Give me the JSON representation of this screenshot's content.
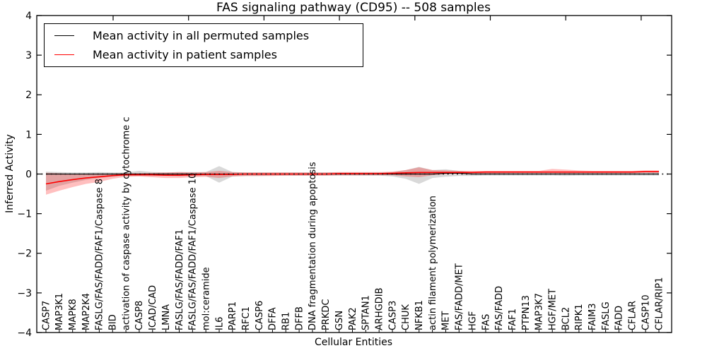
{
  "title": "FAS signaling pathway (CD95) -- 508 samples",
  "axes": {
    "ylabel": "Inferred Activity",
    "xlabel": "Cellular Entities",
    "ytick_labels": [
      "4",
      "3",
      "2",
      "1",
      "0",
      "−1",
      "−2",
      "−3",
      "−4"
    ],
    "ytick_values": [
      4,
      3,
      2,
      1,
      0,
      -1,
      -2,
      -3,
      -4
    ],
    "ylim": [
      -4,
      4
    ]
  },
  "legend": {
    "items": [
      {
        "label": "Mean activity in all permuted samples",
        "color": "#000000"
      },
      {
        "label": "Mean activity in patient samples",
        "color": "#ff0000"
      }
    ]
  },
  "colors": {
    "permuted_line": "#000000",
    "patient_line": "#ff0000",
    "permuted_band": "rgba(0,0,0,0.15)",
    "patient_band": "rgba(255,0,0,0.25)",
    "zero_line": "#000000",
    "frame": "#000000"
  },
  "chart_data": {
    "type": "line",
    "title": "FAS signaling pathway (CD95) -- 508 samples",
    "xlabel": "Cellular Entities",
    "ylabel": "Inferred Activity",
    "ylim": [
      -4,
      4
    ],
    "grid": false,
    "legend_position": "upper left",
    "zero_reference_line": 0,
    "categories": [
      "CASP7",
      "MAP3K1",
      "MAPK8",
      "MAP2K4",
      "FASLG/FAS/FADD/FAF1/Caspase 8",
      "BID",
      "activation of caspase activity by cytochrome c",
      "CASP8",
      "ICAD/CAD",
      "LMNA",
      "FASLG/FAS/FADD/FAF1",
      "FASLG/FAS/FADD/FAF1/Caspase 10",
      "mol:ceramide",
      "IL6",
      "PARP1",
      "RFC1",
      "CASP6",
      "DFFA",
      "RB1",
      "DFFB",
      "DNA fragmentation during apoptosis",
      "PRKDC",
      "GSN",
      "PAK2",
      "SPTAN1",
      "ARHGDIB",
      "CASP3",
      "CHUK",
      "NFKB1",
      "actin filament polymerization",
      "MET",
      "FAS/FADD/MET",
      "HGF",
      "FAS",
      "FAS/FADD",
      "FAF1",
      "PTPN13",
      "MAP3K7",
      "HGF/MET",
      "BCL2",
      "RIPK1",
      "FAIM3",
      "FASLG",
      "FADD",
      "CFLAR",
      "CASP10",
      "CFLAR/RIP1"
    ],
    "series": [
      {
        "name": "Mean activity in all permuted samples",
        "color": "#000000",
        "values": [
          0,
          0,
          0,
          0,
          0,
          0,
          0,
          0,
          0,
          0,
          0,
          0,
          0,
          0,
          0,
          0,
          0,
          0,
          0,
          0,
          0,
          0,
          0,
          0,
          0,
          0,
          0,
          0,
          0,
          0,
          0.02,
          0.02,
          0,
          0,
          0,
          0,
          0,
          0,
          0,
          0,
          0,
          0,
          0,
          0,
          0,
          0,
          0
        ],
        "band_upper": [
          0.06,
          0.05,
          0.04,
          0.04,
          0.05,
          0.04,
          0.04,
          0.08,
          0.05,
          0.04,
          0.05,
          0.05,
          0.05,
          0.2,
          0.05,
          0.04,
          0.04,
          0.04,
          0.04,
          0.04,
          0.04,
          0.04,
          0.04,
          0.04,
          0.04,
          0.04,
          0.05,
          0.1,
          0.18,
          0.1,
          0.12,
          0.08,
          0.05,
          0.04,
          0.04,
          0.04,
          0.04,
          0.04,
          0.05,
          0.06,
          0.05,
          0.04,
          0.04,
          0.04,
          0.04,
          0.04,
          0.05
        ],
        "band_lower": [
          -0.42,
          -0.3,
          -0.22,
          -0.15,
          -0.1,
          -0.07,
          -0.05,
          -0.05,
          -0.05,
          -0.05,
          -0.06,
          -0.05,
          -0.05,
          -0.22,
          -0.06,
          -0.05,
          -0.05,
          -0.04,
          -0.04,
          -0.04,
          -0.04,
          -0.04,
          -0.04,
          -0.04,
          -0.04,
          -0.04,
          -0.06,
          -0.12,
          -0.25,
          -0.1,
          -0.07,
          -0.05,
          -0.05,
          -0.04,
          -0.04,
          -0.04,
          -0.04,
          -0.04,
          -0.04,
          -0.05,
          -0.04,
          -0.04,
          -0.04,
          -0.04,
          -0.04,
          -0.04,
          -0.04
        ]
      },
      {
        "name": "Mean activity in patient samples",
        "color": "#ff0000",
        "values": [
          -0.25,
          -0.19,
          -0.14,
          -0.1,
          -0.07,
          -0.04,
          -0.02,
          -0.02,
          -0.02,
          -0.03,
          -0.03,
          -0.02,
          -0.01,
          -0.01,
          -0.01,
          0,
          0,
          0,
          0,
          0,
          0,
          0,
          0.01,
          0.01,
          0.01,
          0.01,
          0.02,
          0.03,
          0.04,
          0.04,
          0.04,
          0.04,
          0.04,
          0.05,
          0.05,
          0.05,
          0.05,
          0.05,
          0.05,
          0.05,
          0.05,
          0.05,
          0.05,
          0.05,
          0.05,
          0.06,
          0.06
        ],
        "band_upper": [
          0.03,
          0.02,
          0.0,
          0.0,
          0.0,
          0.01,
          0.02,
          0.02,
          0.03,
          0.04,
          0.05,
          0.04,
          0.05,
          0.08,
          0.05,
          0.04,
          0.04,
          0.04,
          0.04,
          0.04,
          0.04,
          0.04,
          0.05,
          0.05,
          0.05,
          0.05,
          0.06,
          0.1,
          0.17,
          0.1,
          0.09,
          0.08,
          0.08,
          0.08,
          0.08,
          0.08,
          0.08,
          0.08,
          0.13,
          0.11,
          0.09,
          0.08,
          0.08,
          0.08,
          0.08,
          0.09,
          0.09
        ],
        "band_lower": [
          -0.52,
          -0.42,
          -0.33,
          -0.25,
          -0.2,
          -0.12,
          -0.07,
          -0.06,
          -0.08,
          -0.1,
          -0.1,
          -0.08,
          -0.07,
          -0.1,
          -0.06,
          -0.05,
          -0.05,
          -0.05,
          -0.04,
          -0.04,
          -0.04,
          -0.04,
          -0.03,
          -0.03,
          -0.03,
          -0.03,
          -0.03,
          -0.06,
          -0.08,
          -0.03,
          0.0,
          0.01,
          0.01,
          0.01,
          0.01,
          0.02,
          0.02,
          0.02,
          0.02,
          0.01,
          0.02,
          0.02,
          0.02,
          0.02,
          0.02,
          0.03,
          0.03
        ]
      }
    ]
  }
}
